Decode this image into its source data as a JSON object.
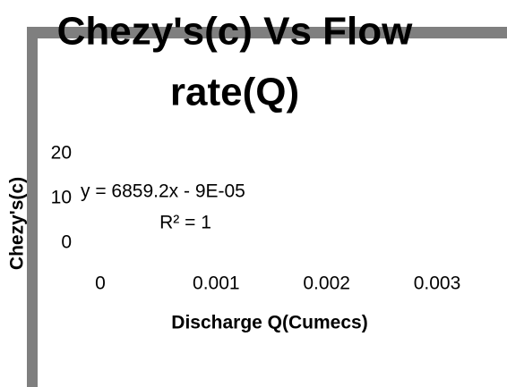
{
  "chart_data": {
    "type": "scatter",
    "title_lines": [
      "Chezy's(c) Vs Flow",
      "rate(Q)"
    ],
    "x_label": "Discharge Q(Cumecs)",
    "y_label": "Chezy's(c)",
    "annotations": [
      "y = 6859.2x - 9E-05",
      "R² = 1"
    ],
    "xlim": [
      0,
      0.003
    ],
    "xticks": [
      0,
      0.001,
      0.002,
      0.003
    ],
    "ylim": [
      0,
      20
    ],
    "yticks": [
      0,
      10,
      20
    ]
  }
}
